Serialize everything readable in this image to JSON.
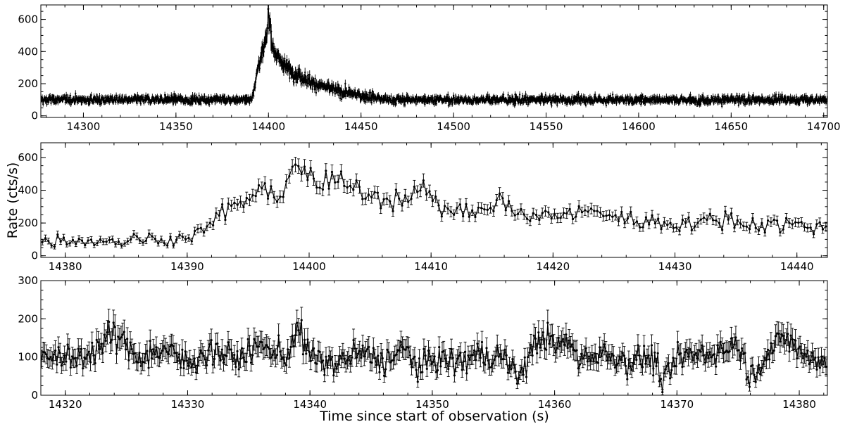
{
  "chart_data": [
    {
      "type": "line",
      "panel": "top",
      "xlim": [
        14277,
        14702
      ],
      "ylim": [
        -10,
        690
      ],
      "yticks": [
        0,
        200,
        400,
        600
      ],
      "xticks": [
        14300,
        14350,
        14400,
        14450,
        14500,
        14550,
        14600,
        14650,
        14700
      ],
      "bin_s": 0.125,
      "series": [
        {
          "baseline_rate": 100,
          "burst_start": 14391,
          "burst_peak_time": 14400,
          "peak_rate": 650,
          "decay_end": 14455,
          "points": [
            [
              14391,
              110
            ],
            [
              14393,
              220
            ],
            [
              14395,
              330
            ],
            [
              14397,
              400
            ],
            [
              14399,
              480
            ],
            [
              14400,
              650
            ],
            [
              14402,
              440
            ],
            [
              14405,
              360
            ],
            [
              14410,
              300
            ],
            [
              14415,
              260
            ],
            [
              14420,
              230
            ],
            [
              14425,
              200
            ],
            [
              14430,
              180
            ],
            [
              14440,
              150
            ],
            [
              14450,
              125
            ],
            [
              14460,
              110
            ]
          ]
        }
      ]
    },
    {
      "type": "line",
      "panel": "middle",
      "xlim": [
        14378,
        14442.5
      ],
      "ylim": [
        -10,
        690
      ],
      "yticks": [
        0,
        200,
        400,
        600
      ],
      "xticks": [
        14380,
        14390,
        14400,
        14410,
        14420,
        14430,
        14440
      ],
      "bin_s": 0.25,
      "series": [
        {
          "points": [
            [
              14378,
              85
            ],
            [
              14380,
              100
            ],
            [
              14382,
              90
            ],
            [
              14384,
              95
            ],
            [
              14385,
              80
            ],
            [
              14386,
              110
            ],
            [
              14388,
              95
            ],
            [
              14390,
              115
            ],
            [
              14391,
              140
            ],
            [
              14392,
              200
            ],
            [
              14393,
              260
            ],
            [
              14394,
              320
            ],
            [
              14395,
              340
            ],
            [
              14396,
              390
            ],
            [
              14397,
              370
            ],
            [
              14398,
              410
            ],
            [
              14399,
              600
            ],
            [
              14400,
              450
            ],
            [
              14401,
              420
            ],
            [
              14402,
              480
            ],
            [
              14403,
              410
            ],
            [
              14404,
              400
            ],
            [
              14405,
              380
            ],
            [
              14406,
              360
            ],
            [
              14407,
              350
            ],
            [
              14408,
              360
            ],
            [
              14409,
              460
            ],
            [
              14410,
              330
            ],
            [
              14411,
              290
            ],
            [
              14413,
              270
            ],
            [
              14415,
              280
            ],
            [
              14416,
              370
            ],
            [
              14417,
              250
            ],
            [
              14418,
              230
            ],
            [
              14420,
              250
            ],
            [
              14422,
              260
            ],
            [
              14424,
              270
            ],
            [
              14426,
              220
            ],
            [
              14428,
              210
            ],
            [
              14430,
              200
            ],
            [
              14432,
              200
            ],
            [
              14434,
              230
            ],
            [
              14436,
              190
            ],
            [
              14438,
              200
            ],
            [
              14440,
              190
            ],
            [
              14442,
              170
            ]
          ]
        }
      ]
    },
    {
      "type": "line",
      "panel": "bottom",
      "xlim": [
        14318,
        14382.3
      ],
      "ylim": [
        0,
        300
      ],
      "yticks": [
        0,
        100,
        200,
        300
      ],
      "xticks": [
        14320,
        14330,
        14340,
        14350,
        14360,
        14370,
        14380
      ],
      "bin_s": 0.125,
      "series": [
        {
          "mean_rate": 100,
          "points": [
            [
              14318,
              120
            ],
            [
              14320,
              90
            ],
            [
              14322,
              110
            ],
            [
              14324,
              160
            ],
            [
              14326,
              100
            ],
            [
              14328,
              120
            ],
            [
              14330,
              85
            ],
            [
              14332,
              120
            ],
            [
              14334,
              95
            ],
            [
              14336,
              130
            ],
            [
              14338,
              100
            ],
            [
              14339,
              175
            ],
            [
              14340,
              100
            ],
            [
              14342,
              80
            ],
            [
              14344,
              110
            ],
            [
              14346,
              90
            ],
            [
              14348,
              120
            ],
            [
              14349,
              60
            ],
            [
              14350,
              100
            ],
            [
              14352,
              85
            ],
            [
              14354,
              110
            ],
            [
              14356,
              95
            ],
            [
              14357,
              45
            ],
            [
              14358,
              110
            ],
            [
              14359,
              160
            ],
            [
              14360,
              125
            ],
            [
              14361,
              140
            ],
            [
              14362,
              100
            ],
            [
              14364,
              110
            ],
            [
              14366,
              90
            ],
            [
              14368,
              100
            ],
            [
              14369,
              30
            ],
            [
              14370,
              95
            ],
            [
              14372,
              110
            ],
            [
              14374,
              120
            ],
            [
              14375,
              140
            ],
            [
              14376,
              45
            ],
            [
              14377,
              100
            ],
            [
              14378,
              125
            ],
            [
              14379,
              155
            ],
            [
              14380,
              110
            ],
            [
              14382,
              90
            ]
          ]
        }
      ]
    }
  ],
  "labels": {
    "ylabel": "Rate (cts/s)",
    "xlabel": "Time since start of observation (s)"
  }
}
